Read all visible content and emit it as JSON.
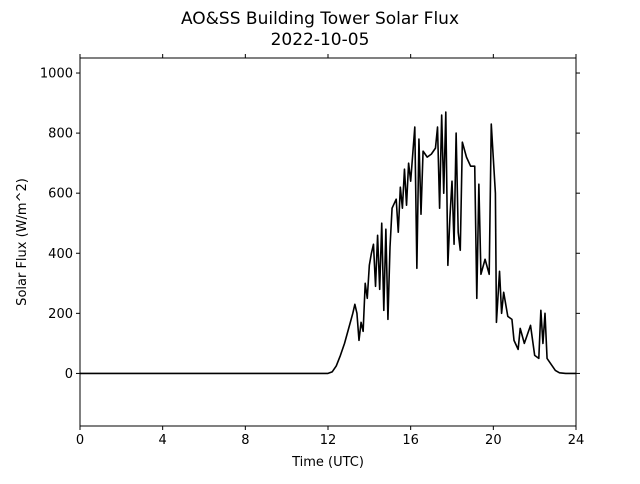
{
  "chart_data": {
    "type": "line",
    "title": "AO&SS Building Tower Solar Flux",
    "subtitle": "2022-10-05",
    "xlabel": "Time (UTC)",
    "ylabel": "Solar Flux (W/m^2)",
    "xlim": [
      0,
      24
    ],
    "xticks": [
      0,
      4,
      8,
      12,
      16,
      20,
      24
    ],
    "ylim": [
      -175,
      1050
    ],
    "yticks": [
      0,
      200,
      400,
      600,
      800,
      1000
    ],
    "grid": false,
    "series": [
      {
        "name": "Solar Flux",
        "color": "#000000",
        "x": [
          0,
          12,
          12.2,
          12.4,
          12.6,
          12.8,
          13,
          13.2,
          13.3,
          13.4,
          13.5,
          13.6,
          13.7,
          13.8,
          13.9,
          14,
          14.1,
          14.2,
          14.3,
          14.4,
          14.5,
          14.6,
          14.7,
          14.8,
          14.9,
          15,
          15.1,
          15.3,
          15.4,
          15.5,
          15.6,
          15.7,
          15.8,
          15.9,
          16,
          16.1,
          16.2,
          16.3,
          16.4,
          16.5,
          16.6,
          16.8,
          17,
          17.2,
          17.3,
          17.4,
          17.5,
          17.6,
          17.7,
          17.8,
          17.9,
          18,
          18.1,
          18.2,
          18.3,
          18.4,
          18.5,
          18.7,
          18.9,
          19.1,
          19.2,
          19.3,
          19.4,
          19.6,
          19.8,
          19.9,
          20.1,
          20.15,
          20.3,
          20.4,
          20.5,
          20.7,
          20.9,
          21,
          21.2,
          21.3,
          21.5,
          21.8,
          22,
          22.2,
          22.3,
          22.4,
          22.5,
          22.6,
          22.8,
          23,
          23.2,
          23.5,
          24
        ],
        "values": [
          0,
          0,
          5,
          25,
          60,
          100,
          150,
          200,
          230,
          200,
          110,
          170,
          140,
          300,
          250,
          360,
          400,
          430,
          290,
          460,
          280,
          500,
          210,
          480,
          180,
          420,
          550,
          580,
          470,
          620,
          550,
          680,
          560,
          700,
          640,
          730,
          820,
          350,
          780,
          530,
          740,
          720,
          730,
          750,
          820,
          550,
          860,
          600,
          870,
          360,
          520,
          640,
          430,
          800,
          470,
          410,
          770,
          720,
          690,
          690,
          250,
          630,
          330,
          380,
          330,
          830,
          600,
          170,
          340,
          200,
          270,
          190,
          180,
          110,
          80,
          150,
          100,
          160,
          60,
          50,
          210,
          100,
          200,
          50,
          30,
          10,
          2,
          0,
          0
        ]
      }
    ]
  }
}
